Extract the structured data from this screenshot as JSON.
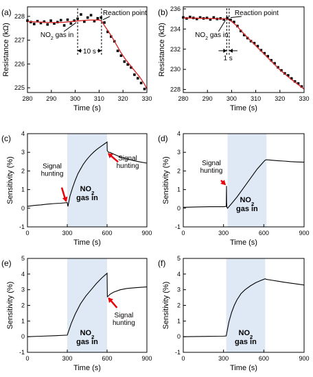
{
  "chart_data": [
    {
      "panel_label": "(a)",
      "type": "scatter",
      "xlabel": "Time (s)",
      "ylabel": "Resistance (kΩ)",
      "xlim": [
        280,
        330
      ],
      "ylim": [
        224.8,
        228.4
      ],
      "xticks": [
        280,
        290,
        300,
        310,
        320,
        330
      ],
      "yticks": [
        225,
        226,
        227,
        228
      ],
      "series": [
        {
          "marker": "square",
          "color": "#000000",
          "x": [
            280,
            281.4,
            282.8,
            284.2,
            285.6,
            287,
            288.4,
            289.8,
            291.2,
            292.6,
            294,
            295.4,
            296.8,
            298.2,
            299.6,
            301,
            302.4,
            303.8,
            305.2,
            306.6,
            308,
            309.4,
            310.8,
            312.2,
            313.6,
            315,
            316.4,
            317.8,
            319.2,
            320.6,
            322,
            323.4,
            324.8,
            326.2,
            327.6,
            329
          ],
          "y": [
            227.82,
            227.76,
            227.68,
            227.8,
            227.72,
            227.78,
            227.66,
            227.82,
            227.7,
            227.76,
            227.84,
            227.62,
            227.86,
            227.7,
            227.82,
            227.9,
            228.08,
            227.78,
            227.95,
            228.05,
            227.8,
            227.92,
            227.95,
            227.74,
            227.35,
            227.15,
            226.95,
            226.55,
            226.35,
            226.1,
            225.98,
            225.85,
            225.55,
            225.4,
            225.2,
            224.95
          ]
        },
        {
          "marker": "line",
          "color": "#d62728",
          "x": [
            280,
            285,
            290,
            295,
            300,
            305,
            310,
            311,
            313,
            315,
            317,
            319,
            321,
            323,
            325,
            327,
            329,
            330
          ],
          "y": [
            227.78,
            227.76,
            227.74,
            227.75,
            227.8,
            227.84,
            227.85,
            227.8,
            227.5,
            227.2,
            226.85,
            226.5,
            226.2,
            225.95,
            225.7,
            225.45,
            225.15,
            224.95
          ]
        }
      ],
      "annotations": [
        {
          "text": "NO2 gas in",
          "x": 301,
          "y": 227.8
        },
        {
          "text": "Reaction point",
          "x": 311,
          "y": 227.8
        },
        {
          "text": "10 s",
          "span": [
            301,
            311
          ],
          "y": 227.5
        }
      ]
    },
    {
      "panel_label": "(b)",
      "type": "scatter",
      "xlabel": "Time (s)",
      "ylabel": "Resistance (kΩ)",
      "xlim": [
        280,
        330
      ],
      "ylim": [
        227.7,
        236.2
      ],
      "xticks": [
        280,
        290,
        300,
        310,
        320,
        330
      ],
      "yticks": [
        228,
        230,
        232,
        234,
        236
      ],
      "series": [
        {
          "marker": "square",
          "color": "#000000",
          "x": [
            280,
            281.4,
            282.8,
            284.2,
            285.6,
            287,
            288.4,
            289.8,
            291.2,
            292.6,
            294,
            295.4,
            296.8,
            298.2,
            299.6,
            301,
            302.4,
            303.8,
            305.2,
            306.6,
            308,
            309.4,
            310.8,
            312.2,
            313.6,
            315,
            316.4,
            317.8,
            319.2,
            320.6,
            322,
            323.4,
            324.8,
            326.2,
            327.6,
            329
          ],
          "y": [
            235.15,
            235.05,
            235.2,
            235.1,
            235.0,
            235.15,
            235.05,
            235.1,
            234.95,
            235.15,
            235.0,
            235.05,
            234.95,
            235.1,
            234.9,
            234.7,
            234.3,
            233.8,
            233.4,
            233.1,
            232.8,
            232.6,
            232.3,
            231.9,
            231.6,
            231.3,
            230.9,
            230.6,
            230.2,
            229.9,
            229.6,
            229.4,
            229.1,
            228.8,
            228.6,
            228.3
          ]
        },
        {
          "marker": "line",
          "color": "#d62728",
          "x": [
            280,
            285,
            290,
            295,
            298,
            299,
            300,
            302,
            305,
            310,
            315,
            320,
            325,
            330
          ],
          "y": [
            235.1,
            235.08,
            235.05,
            235.02,
            235.0,
            234.9,
            234.75,
            234.35,
            233.55,
            232.35,
            231.15,
            229.95,
            228.95,
            228.05
          ]
        }
      ],
      "annotations": [
        {
          "text": "NO2 gas in",
          "x": 298,
          "y": 235.0
        },
        {
          "text": "Reaction point",
          "x": 299,
          "y": 235.0
        },
        {
          "text": "1 s",
          "span": [
            298,
            299
          ],
          "y": 234.2
        }
      ]
    },
    {
      "panel_label": "(c)",
      "type": "line",
      "xlabel": "Time (s)",
      "ylabel": "Sensitivity (%)",
      "xlim": [
        0,
        900
      ],
      "ylim": [
        -1,
        4
      ],
      "xticks": [
        0,
        300,
        600,
        900
      ],
      "yticks": [
        -1,
        0,
        1,
        2,
        3,
        4
      ],
      "shaded": [
        300,
        600
      ],
      "series": [
        {
          "color": "#000000",
          "x": [
            0,
            50,
            100,
            150,
            200,
            250,
            300,
            302,
            305,
            320,
            340,
            360,
            380,
            400,
            420,
            440,
            460,
            480,
            500,
            520,
            540,
            560,
            580,
            600,
            601,
            610,
            620,
            650,
            700,
            750,
            800,
            850,
            900
          ],
          "y": [
            0.1,
            0.15,
            0.18,
            0.22,
            0.25,
            0.27,
            0.3,
            0.2,
            0.1,
            0.65,
            1.1,
            1.5,
            1.85,
            2.1,
            2.35,
            2.55,
            2.72,
            2.88,
            3.02,
            3.14,
            3.25,
            3.35,
            3.45,
            3.55,
            3.1,
            3.0,
            3.0,
            2.9,
            2.75,
            2.65,
            2.55,
            2.48,
            2.42
          ]
        }
      ],
      "annotations": [
        {
          "text": "Signal hunting",
          "x": 300,
          "y": 0.3
        },
        {
          "text": "Signal hunting",
          "x": 600,
          "y": 3.0
        },
        {
          "text": "NO2 gas in",
          "x": 450,
          "y": 0.9
        }
      ]
    },
    {
      "panel_label": "(d)",
      "type": "line",
      "xlabel": "Time (s)",
      "ylabel": "Sensitivity (%)",
      "xlim": [
        0,
        900
      ],
      "ylim": [
        -1,
        4
      ],
      "xticks": [
        0,
        300,
        600,
        900
      ],
      "yticks": [
        -1,
        0,
        1,
        2,
        3,
        4
      ],
      "shaded": [
        330,
        620
      ],
      "series": [
        {
          "color": "#000000",
          "x": [
            0,
            100,
            200,
            300,
            320,
            322,
            323,
            325,
            330,
            360,
            400,
            450,
            500,
            550,
            600,
            610,
            620,
            650,
            700,
            750,
            800,
            850,
            900
          ],
          "y": [
            0.05,
            0.07,
            0.08,
            0.08,
            0.1,
            1.2,
            0.3,
            0.05,
            0.0,
            0.25,
            0.6,
            1.1,
            1.6,
            2.1,
            2.5,
            2.58,
            2.6,
            2.58,
            2.55,
            2.53,
            2.5,
            2.48,
            2.47
          ]
        }
      ],
      "annotations": [
        {
          "text": "Signal hunting",
          "x": 322,
          "y": 1.2
        },
        {
          "text": "NO2 gas in",
          "x": 475,
          "y": 0.3
        }
      ]
    },
    {
      "panel_label": "(e)",
      "type": "line",
      "xlabel": "Time (s)",
      "ylabel": "Sensitivity (%)",
      "xlim": [
        0,
        900
      ],
      "ylim": [
        -1,
        5
      ],
      "xticks": [
        0,
        300,
        600,
        900
      ],
      "yticks": [
        -1,
        0,
        1,
        2,
        3,
        4,
        5
      ],
      "shaded": [
        300,
        600
      ],
      "series": [
        {
          "color": "#000000",
          "x": [
            0,
            100,
            200,
            300,
            310,
            330,
            360,
            400,
            440,
            480,
            520,
            560,
            590,
            600,
            602,
            610,
            620,
            650,
            700,
            750,
            800,
            850,
            900
          ],
          "y": [
            0,
            0.03,
            0.06,
            0.1,
            0.35,
            0.85,
            1.45,
            2.1,
            2.6,
            3.0,
            3.4,
            3.75,
            3.98,
            4.05,
            2.55,
            2.6,
            2.7,
            2.85,
            3.0,
            3.08,
            3.12,
            3.15,
            3.18
          ]
        }
      ],
      "annotations": [
        {
          "text": "Signal hunting",
          "x": 602,
          "y": 2.55
        },
        {
          "text": "NO2 gas in",
          "x": 450,
          "y": -0.3
        }
      ]
    },
    {
      "panel_label": "(f)",
      "type": "line",
      "xlabel": "Time (s)",
      "ylabel": "Sensitivity (%)",
      "xlim": [
        0,
        900
      ],
      "ylim": [
        -1,
        5
      ],
      "xticks": [
        0,
        300,
        600,
        900
      ],
      "yticks": [
        -1,
        0,
        1,
        2,
        3,
        4,
        5
      ],
      "shaded": [
        320,
        610
      ],
      "series": [
        {
          "color": "#000000",
          "x": [
            0,
            100,
            200,
            300,
            320,
            330,
            340,
            360,
            380,
            400,
            430,
            460,
            500,
            540,
            580,
            610,
            620,
            650,
            700,
            750,
            800,
            850,
            900
          ],
          "y": [
            0,
            0.01,
            0.02,
            0.03,
            0.05,
            0.5,
            0.95,
            1.55,
            2.0,
            2.35,
            2.75,
            3.0,
            3.25,
            3.45,
            3.6,
            3.7,
            3.66,
            3.62,
            3.55,
            3.48,
            3.42,
            3.36,
            3.3
          ]
        }
      ],
      "annotations": [
        {
          "text": "NO2 gas in",
          "x": 465,
          "y": -0.3
        }
      ]
    }
  ]
}
